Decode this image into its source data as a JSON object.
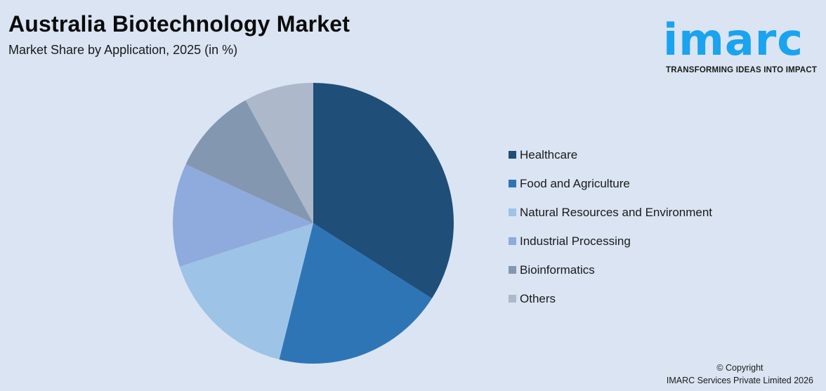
{
  "header": {
    "title": "Australia Biotechnology Market",
    "subtitle": "Market Share by Application, 2025 (in %)"
  },
  "logo": {
    "word": "imarc",
    "tagline": "TRANSFORMING IDEAS INTO IMPACT",
    "color": "#1aa3ee"
  },
  "legend": {
    "items": [
      {
        "label": "Healthcare",
        "color": "#1f4e79"
      },
      {
        "label": "Food and Agriculture",
        "color": "#2e75b6"
      },
      {
        "label": "Natural Resources and Environment",
        "color": "#9dc3e6"
      },
      {
        "label": "Industrial Processing",
        "color": "#8faadc"
      },
      {
        "label": "Bioinformatics",
        "color": "#8497b0"
      },
      {
        "label": "Others",
        "color": "#adb9ca"
      }
    ]
  },
  "footer": {
    "copyright": "© Copyright",
    "company": "IMARC Services Private Limited 2026"
  },
  "chart_data": {
    "type": "pie",
    "title": "Australia Biotechnology Market",
    "subtitle": "Market Share by Application, 2025 (in %)",
    "categories": [
      "Healthcare",
      "Food and Agriculture",
      "Natural Resources and Environment",
      "Industrial Processing",
      "Bioinformatics",
      "Others"
    ],
    "values": [
      34.0,
      19.9,
      16.1,
      11.9,
      10.1,
      8.0
    ],
    "colors": [
      "#1f4e79",
      "#2e75b6",
      "#9dc3e6",
      "#8faadc",
      "#8497b0",
      "#adb9ca"
    ],
    "start_angle": "12 o'clock, clockwise",
    "data_labels": false,
    "legend_position": "right"
  }
}
